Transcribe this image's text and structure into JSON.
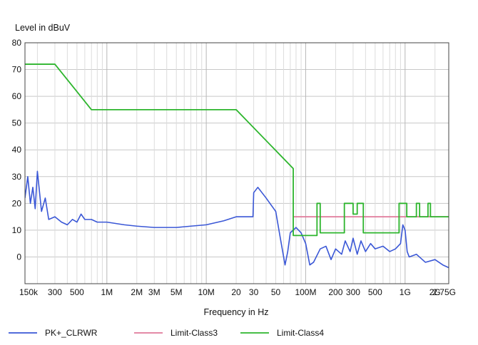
{
  "chart_data": {
    "type": "line",
    "title": "",
    "ylabel": "Level in dBuV",
    "xlabel": "Frequency in Hz",
    "x_scale": "log",
    "xlim_hz": [
      150000,
      2750000000
    ],
    "ylim": [
      -10,
      80
    ],
    "y_ticks": [
      -10,
      0,
      10,
      20,
      30,
      40,
      50,
      60,
      70,
      80
    ],
    "y_tick_labels": [
      "",
      "0",
      "10",
      "20",
      "30",
      "40",
      "50",
      "60",
      "70",
      "80"
    ],
    "x_ticks": [
      {
        "hz": 150000,
        "label": "150k"
      },
      {
        "hz": 300000,
        "label": "300"
      },
      {
        "hz": 500000,
        "label": "500"
      },
      {
        "hz": 1000000,
        "label": "1M"
      },
      {
        "hz": 2000000,
        "label": "2M"
      },
      {
        "hz": 3000000,
        "label": "3M"
      },
      {
        "hz": 5000000,
        "label": "5M"
      },
      {
        "hz": 10000000,
        "label": "10M"
      },
      {
        "hz": 20000000,
        "label": "20"
      },
      {
        "hz": 30000000,
        "label": "30"
      },
      {
        "hz": 50000000,
        "label": "50"
      },
      {
        "hz": 100000000,
        "label": "100M"
      },
      {
        "hz": 200000000,
        "label": "200"
      },
      {
        "hz": 300000000,
        "label": "300"
      },
      {
        "hz": 500000000,
        "label": "500"
      },
      {
        "hz": 1000000000,
        "label": "1G"
      },
      {
        "hz": 2000000000,
        "label": "2G"
      },
      {
        "hz": 2750000000,
        "label": "2.75G"
      }
    ],
    "grid": true,
    "legend_position": "bottom",
    "series": [
      {
        "name": "PK+_CLRWR",
        "color": "#3a57d6",
        "points": [
          [
            150000,
            22
          ],
          [
            160000,
            30
          ],
          [
            170000,
            20
          ],
          [
            180000,
            26
          ],
          [
            190000,
            18
          ],
          [
            200000,
            32
          ],
          [
            220000,
            17
          ],
          [
            240000,
            22
          ],
          [
            260000,
            14
          ],
          [
            300000,
            15
          ],
          [
            350000,
            13
          ],
          [
            400000,
            12
          ],
          [
            450000,
            14
          ],
          [
            500000,
            13
          ],
          [
            550000,
            16
          ],
          [
            600000,
            14
          ],
          [
            700000,
            14
          ],
          [
            800000,
            13
          ],
          [
            1000000,
            13
          ],
          [
            1500000,
            12
          ],
          [
            2000000,
            11.5
          ],
          [
            3000000,
            11
          ],
          [
            5000000,
            11
          ],
          [
            7000000,
            11.5
          ],
          [
            10000000,
            12
          ],
          [
            15000000,
            13.5
          ],
          [
            20000000,
            15
          ],
          [
            25000000,
            15
          ],
          [
            29500000,
            15
          ],
          [
            30000000,
            24
          ],
          [
            33000000,
            26
          ],
          [
            40000000,
            22
          ],
          [
            50000000,
            17
          ],
          [
            55000000,
            8
          ],
          [
            60000000,
            0
          ],
          [
            62000000,
            -3
          ],
          [
            66000000,
            2
          ],
          [
            70000000,
            9
          ],
          [
            80000000,
            11
          ],
          [
            90000000,
            9
          ],
          [
            100000000,
            5
          ],
          [
            110000000,
            -3
          ],
          [
            120000000,
            -2
          ],
          [
            140000000,
            3
          ],
          [
            160000000,
            4
          ],
          [
            180000000,
            -1
          ],
          [
            200000000,
            3
          ],
          [
            230000000,
            1
          ],
          [
            250000000,
            6
          ],
          [
            280000000,
            2
          ],
          [
            300000000,
            7
          ],
          [
            330000000,
            1
          ],
          [
            360000000,
            6
          ],
          [
            400000000,
            2
          ],
          [
            450000000,
            5
          ],
          [
            500000000,
            3
          ],
          [
            600000000,
            4
          ],
          [
            700000000,
            2
          ],
          [
            800000000,
            3
          ],
          [
            900000000,
            5
          ],
          [
            950000000,
            12
          ],
          [
            1000000000,
            10
          ],
          [
            1050000000,
            2
          ],
          [
            1100000000,
            0
          ],
          [
            1300000000,
            1
          ],
          [
            1600000000,
            -2
          ],
          [
            2000000000,
            -1
          ],
          [
            2400000000,
            -3
          ],
          [
            2750000000,
            -4
          ]
        ]
      },
      {
        "name": "Limit-Class3",
        "color": "#e07a9a",
        "points": [
          [
            75000000,
            15
          ],
          [
            2750000000,
            15
          ]
        ]
      },
      {
        "name": "Limit-Class4",
        "color": "#2db52d",
        "points": [
          [
            150000,
            72
          ],
          [
            300000,
            72
          ],
          [
            700000,
            55
          ],
          [
            20000000,
            55
          ],
          [
            75000000,
            33
          ],
          [
            75000000,
            8
          ],
          [
            130000000,
            8
          ],
          [
            130000000,
            20
          ],
          [
            140000000,
            20
          ],
          [
            140000000,
            9
          ],
          [
            245000000,
            9
          ],
          [
            245000000,
            20
          ],
          [
            300000000,
            20
          ],
          [
            300000000,
            16
          ],
          [
            330000000,
            16
          ],
          [
            330000000,
            20
          ],
          [
            380000000,
            20
          ],
          [
            380000000,
            9
          ],
          [
            870000000,
            9
          ],
          [
            870000000,
            20
          ],
          [
            1040000000,
            20
          ],
          [
            1040000000,
            15
          ],
          [
            1300000000,
            15
          ],
          [
            1300000000,
            20
          ],
          [
            1400000000,
            20
          ],
          [
            1400000000,
            15
          ],
          [
            1700000000,
            15
          ],
          [
            1700000000,
            20
          ],
          [
            1800000000,
            20
          ],
          [
            1800000000,
            15
          ],
          [
            2750000000,
            15
          ]
        ]
      }
    ]
  }
}
